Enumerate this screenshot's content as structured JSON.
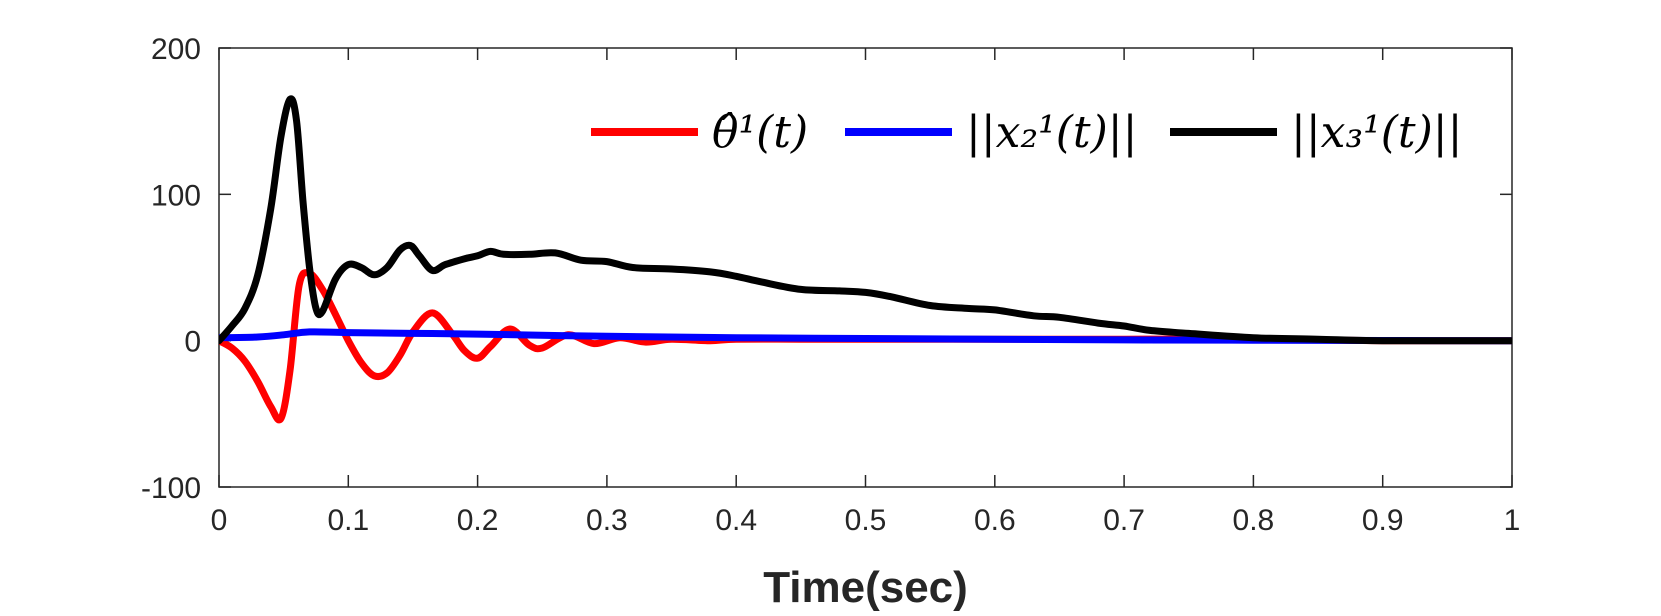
{
  "chart_data": {
    "type": "line",
    "xlabel": "Time(sec)",
    "ylabel": "",
    "xlim": [
      0,
      1
    ],
    "ylim": [
      -100,
      200
    ],
    "xticks": [
      "0",
      "0.1",
      "0.2",
      "0.3",
      "0.4",
      "0.5",
      "0.6",
      "0.7",
      "0.8",
      "0.9",
      "1"
    ],
    "yticks": [
      "-100",
      "0",
      "100",
      "200"
    ],
    "grid": false,
    "legend_position": "top-right",
    "series": [
      {
        "name": "θ̂¹(t)",
        "color": "#ff0000",
        "x": [
          0,
          0.01,
          0.02,
          0.03,
          0.04,
          0.048,
          0.055,
          0.062,
          0.07,
          0.08,
          0.09,
          0.1,
          0.11,
          0.12,
          0.13,
          0.14,
          0.15,
          0.165,
          0.18,
          0.19,
          0.2,
          0.21,
          0.225,
          0.24,
          0.25,
          0.27,
          0.29,
          0.31,
          0.33,
          0.35,
          0.38,
          0.4,
          0.45,
          0.5,
          0.6,
          0.7,
          0.8,
          0.9,
          1.0
        ],
        "y": [
          0,
          -5,
          -14,
          -28,
          -45,
          -53,
          -20,
          38,
          46,
          35,
          18,
          0,
          -15,
          -24,
          -22,
          -10,
          6,
          19,
          5,
          -7,
          -12,
          -4,
          8,
          -3,
          -5,
          4,
          -2,
          2,
          -1,
          1,
          0,
          1,
          1,
          1,
          1,
          1,
          1,
          0,
          0
        ]
      },
      {
        "name": "||x₂¹(t)||",
        "color": "#0000ff",
        "x": [
          0,
          0.03,
          0.05,
          0.07,
          0.1,
          0.15,
          0.2,
          0.3,
          0.4,
          0.5,
          0.6,
          0.7,
          0.8,
          0.9,
          1.0
        ],
        "y": [
          2,
          2.5,
          4,
          6,
          5.5,
          5,
          4.5,
          3,
          2,
          1.5,
          1,
          0.5,
          0.3,
          0.1,
          0
        ]
      },
      {
        "name": "||x₃¹(t)||",
        "color": "#000000",
        "x": [
          0,
          0.01,
          0.02,
          0.03,
          0.04,
          0.048,
          0.055,
          0.06,
          0.065,
          0.07,
          0.075,
          0.08,
          0.09,
          0.1,
          0.11,
          0.12,
          0.13,
          0.14,
          0.148,
          0.155,
          0.165,
          0.175,
          0.19,
          0.2,
          0.21,
          0.22,
          0.24,
          0.26,
          0.28,
          0.3,
          0.32,
          0.35,
          0.38,
          0.4,
          0.42,
          0.45,
          0.48,
          0.5,
          0.52,
          0.55,
          0.58,
          0.6,
          0.63,
          0.65,
          0.68,
          0.7,
          0.72,
          0.75,
          0.8,
          0.85,
          0.9,
          1.0
        ],
        "y": [
          0,
          10,
          22,
          45,
          90,
          140,
          165,
          150,
          95,
          50,
          22,
          20,
          42,
          52,
          50,
          45,
          50,
          62,
          65,
          58,
          48,
          52,
          56,
          58,
          61,
          59,
          59,
          60,
          55,
          54,
          50,
          49,
          47,
          44,
          40,
          35,
          34,
          33,
          30,
          24,
          22,
          21,
          17,
          16,
          12,
          10,
          7,
          5,
          2,
          1,
          0,
          0
        ]
      }
    ]
  }
}
